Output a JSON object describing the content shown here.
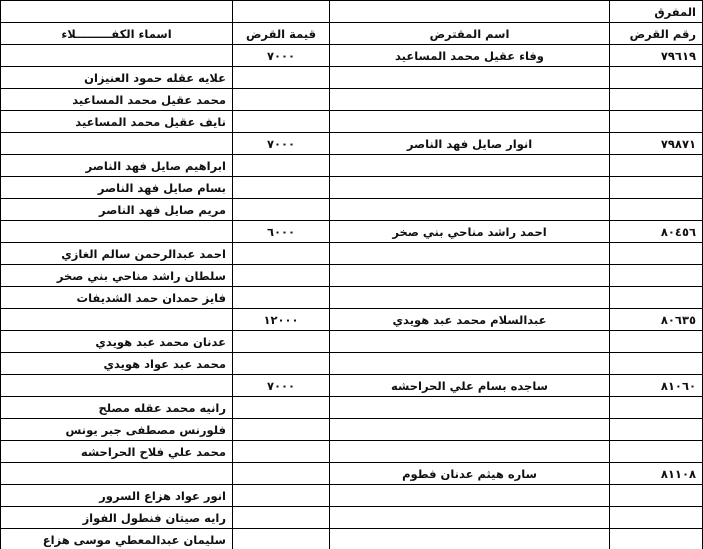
{
  "header": {
    "region": "المفرق",
    "columns": {
      "loan_number": "رقم القرض",
      "borrower": "اسم المقترض",
      "amount": "قيمة القرض",
      "guarantors": "اسماء الكفـــــــــلاء"
    }
  },
  "table": {
    "rows": [
      {
        "loan_number": "٧٩٦١٩",
        "borrower": "وفاء عقيل محمد المساعيد",
        "amount": "٧٠٠٠"
      },
      {
        "guarantor": "علايه عقله حمود العنيزان"
      },
      {
        "guarantor": "محمد عقيل محمد المساعيد"
      },
      {
        "guarantor": "نايف عقيل محمد المساعيد"
      },
      {
        "loan_number": "٧٩٨٧١",
        "borrower": "انوار صايل فهد الناصر",
        "amount": "٧٠٠٠"
      },
      {
        "guarantor": "ابراهيم صايل فهد الناصر"
      },
      {
        "guarantor": "بسام صايل فهد الناصر"
      },
      {
        "guarantor": "مريم صايل فهد الناصر"
      },
      {
        "loan_number": "٨٠٤٥٦",
        "borrower": "احمد راشد مناحي بني صخر",
        "amount": "٦٠٠٠"
      },
      {
        "guarantor": "احمد عبدالرحمن سالم الغازي"
      },
      {
        "guarantor": "سلطان راشد مناحي بني صخر"
      },
      {
        "guarantor": "فايز حمدان حمد الشديفات"
      },
      {
        "loan_number": "٨٠٦٣٥",
        "borrower": "عبدالسلام محمد عبد هويدي",
        "amount": "١٢٠٠٠"
      },
      {
        "guarantor": "عدنان محمد عبد هويدي"
      },
      {
        "guarantor": "محمد عبد عواد هويدي"
      },
      {
        "loan_number": "٨١٠٦٠",
        "borrower": "ساجده بسام علي الحراحشه",
        "amount": "٧٠٠٠"
      },
      {
        "guarantor": "رانيه محمد عقله مصلح"
      },
      {
        "guarantor": "فلورنس مصطفى جبر يونس"
      },
      {
        "guarantor": "محمد علي فلاح الحراحشه"
      },
      {
        "loan_number": "٨١١٠٨",
        "borrower": "ساره هيثم عدنان فطوم"
      },
      {
        "guarantor": "انور عواد هزاع السرور"
      },
      {
        "guarantor": "رايه صيتان فنطول الفواز"
      },
      {
        "guarantor": "سليمان عبدالمعطي موسى هزاع"
      }
    ]
  }
}
